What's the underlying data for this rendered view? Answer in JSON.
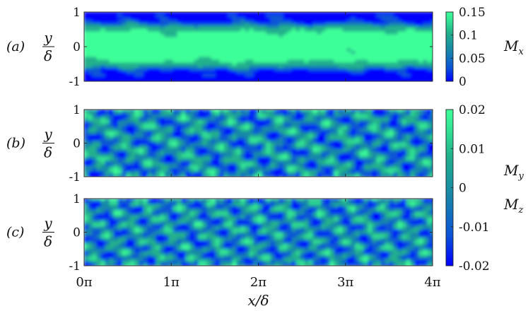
{
  "chart_data": {
    "type": "heatmap",
    "x_axis": {
      "label": "x/δ",
      "range": [
        0,
        4
      ],
      "range_unit": "π",
      "ticks": [
        "0π",
        "1π",
        "2π",
        "3π",
        "4π"
      ]
    },
    "panels": [
      {
        "id": "a",
        "panel_label": "(a)",
        "ylabel_top": "y",
        "ylabel_bottom": "δ",
        "yticks": [
          "1",
          "0",
          "-1"
        ],
        "ylim": [
          -1,
          1
        ],
        "field": "Mx"
      },
      {
        "id": "b",
        "panel_label": "(b)",
        "ylabel_top": "y",
        "ylabel_bottom": "δ",
        "yticks": [
          "1",
          "0",
          "-1"
        ],
        "ylim": [
          -1,
          1
        ],
        "field": "My"
      },
      {
        "id": "c",
        "panel_label": "(c)",
        "ylabel_top": "y",
        "ylabel_bottom": "δ",
        "yticks": [
          "1",
          "0",
          "-1"
        ],
        "ylim": [
          -1,
          1
        ],
        "field": "Mz"
      }
    ],
    "colorbars": [
      {
        "id": "top",
        "range": [
          0,
          0.15
        ],
        "ticks": [
          "0.15",
          "0.1",
          "0.05",
          "0"
        ],
        "labels": [
          {
            "main": "M",
            "sub": "x"
          }
        ]
      },
      {
        "id": "bottom",
        "range": [
          -0.02,
          0.02
        ],
        "ticks": [
          "0.02",
          "0.01",
          "0",
          "-0.01",
          "-0.02"
        ],
        "labels": [
          {
            "main": "M",
            "sub": "y"
          },
          {
            "main": "M",
            "sub": "z"
          }
        ]
      }
    ],
    "colormap": [
      "#0000ff",
      "#0a55d6",
      "#1787a8",
      "#20b08c",
      "#33e494",
      "#3dff99"
    ]
  }
}
